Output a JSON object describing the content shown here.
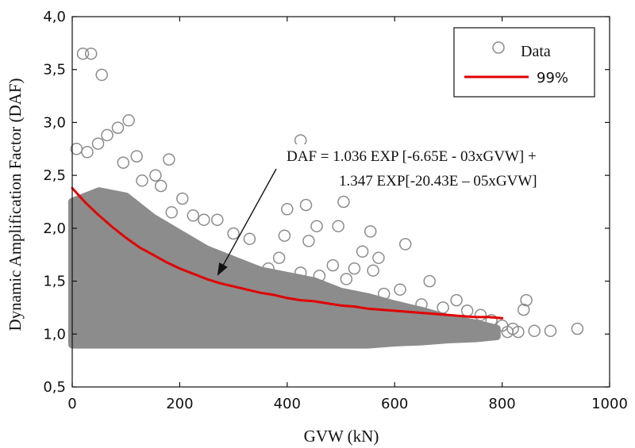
{
  "chart_data": {
    "type": "scatter",
    "xlabel": "GVW (kN)",
    "ylabel": "Dynamic Amplification Factor (DAF)",
    "xlim": [
      0,
      1000
    ],
    "ylim": [
      0.5,
      4.0
    ],
    "x_ticks": [
      "0",
      "200",
      "400",
      "600",
      "800",
      "1000"
    ],
    "y_ticks": [
      "0,5",
      "1,0",
      "1,5",
      "2,0",
      "2,5",
      "3,0",
      "3,5",
      "4,0"
    ],
    "x_tick_values": [
      0,
      200,
      400,
      600,
      800,
      1000
    ],
    "y_tick_values": [
      0.5,
      1.0,
      1.5,
      2.0,
      2.5,
      3.0,
      3.5,
      4.0
    ],
    "grid": false,
    "legend": {
      "placement": "top-right",
      "entries": [
        {
          "label": "Data",
          "marker": "open-circle",
          "color": "#8c8c8c"
        },
        {
          "label": "99%",
          "marker": "line",
          "color": "#e00000"
        }
      ]
    },
    "annotation": {
      "line1": "DAF = 1.036 EXP [-6.65E - 03xGVW] +",
      "line2": "1.347 EXP[-20.43E – 05xGVW]",
      "arrow_target": {
        "x": 270,
        "y": 1.55
      }
    },
    "series": [
      {
        "name": "Data",
        "type": "scatter",
        "color": "#8c8c8c",
        "dense_band": [
          {
            "x": 0,
            "y_low": 0.9,
            "y_high": 2.25
          },
          {
            "x": 50,
            "y_low": 0.9,
            "y_high": 2.35
          },
          {
            "x": 100,
            "y_low": 0.9,
            "y_high": 2.3
          },
          {
            "x": 150,
            "y_low": 0.9,
            "y_high": 2.1
          },
          {
            "x": 200,
            "y_low": 0.9,
            "y_high": 1.95
          },
          {
            "x": 250,
            "y_low": 0.9,
            "y_high": 1.8
          },
          {
            "x": 300,
            "y_low": 0.9,
            "y_high": 1.7
          },
          {
            "x": 350,
            "y_low": 0.9,
            "y_high": 1.6
          },
          {
            "x": 400,
            "y_low": 0.9,
            "y_high": 1.55
          },
          {
            "x": 450,
            "y_low": 0.9,
            "y_high": 1.5
          },
          {
            "x": 500,
            "y_low": 0.9,
            "y_high": 1.4
          },
          {
            "x": 550,
            "y_low": 0.9,
            "y_high": 1.35
          },
          {
            "x": 600,
            "y_low": 0.92,
            "y_high": 1.28
          },
          {
            "x": 650,
            "y_low": 0.93,
            "y_high": 1.22
          },
          {
            "x": 700,
            "y_low": 0.95,
            "y_high": 1.15
          },
          {
            "x": 750,
            "y_low": 0.96,
            "y_high": 1.1
          },
          {
            "x": 790,
            "y_low": 0.98,
            "y_high": 1.05
          }
        ],
        "outliers": [
          {
            "x": 20,
            "y": 3.65
          },
          {
            "x": 35,
            "y": 3.65
          },
          {
            "x": 55,
            "y": 3.45
          },
          {
            "x": 105,
            "y": 3.02
          },
          {
            "x": 85,
            "y": 2.95
          },
          {
            "x": 65,
            "y": 2.88
          },
          {
            "x": 8,
            "y": 2.75
          },
          {
            "x": 48,
            "y": 2.8
          },
          {
            "x": 28,
            "y": 2.72
          },
          {
            "x": 120,
            "y": 2.68
          },
          {
            "x": 180,
            "y": 2.65
          },
          {
            "x": 95,
            "y": 2.62
          },
          {
            "x": 155,
            "y": 2.5
          },
          {
            "x": 130,
            "y": 2.45
          },
          {
            "x": 165,
            "y": 2.4
          },
          {
            "x": 205,
            "y": 2.28
          },
          {
            "x": 185,
            "y": 2.15
          },
          {
            "x": 225,
            "y": 2.12
          },
          {
            "x": 245,
            "y": 2.08
          },
          {
            "x": 270,
            "y": 2.08
          },
          {
            "x": 300,
            "y": 1.95
          },
          {
            "x": 330,
            "y": 1.9
          },
          {
            "x": 425,
            "y": 2.83
          },
          {
            "x": 435,
            "y": 2.22
          },
          {
            "x": 400,
            "y": 2.18
          },
          {
            "x": 505,
            "y": 2.25
          },
          {
            "x": 455,
            "y": 2.02
          },
          {
            "x": 495,
            "y": 2.02
          },
          {
            "x": 555,
            "y": 1.97
          },
          {
            "x": 395,
            "y": 1.93
          },
          {
            "x": 440,
            "y": 1.88
          },
          {
            "x": 620,
            "y": 1.85
          },
          {
            "x": 540,
            "y": 1.78
          },
          {
            "x": 570,
            "y": 1.72
          },
          {
            "x": 385,
            "y": 1.72
          },
          {
            "x": 365,
            "y": 1.62
          },
          {
            "x": 485,
            "y": 1.65
          },
          {
            "x": 525,
            "y": 1.62
          },
          {
            "x": 560,
            "y": 1.6
          },
          {
            "x": 425,
            "y": 1.58
          },
          {
            "x": 460,
            "y": 1.55
          },
          {
            "x": 510,
            "y": 1.52
          },
          {
            "x": 665,
            "y": 1.5
          },
          {
            "x": 610,
            "y": 1.42
          },
          {
            "x": 580,
            "y": 1.38
          },
          {
            "x": 715,
            "y": 1.32
          },
          {
            "x": 845,
            "y": 1.32
          },
          {
            "x": 840,
            "y": 1.23
          },
          {
            "x": 650,
            "y": 1.28
          },
          {
            "x": 690,
            "y": 1.25
          },
          {
            "x": 735,
            "y": 1.22
          },
          {
            "x": 760,
            "y": 1.18
          },
          {
            "x": 780,
            "y": 1.13
          },
          {
            "x": 800,
            "y": 1.08
          },
          {
            "x": 820,
            "y": 1.05
          },
          {
            "x": 860,
            "y": 1.03
          },
          {
            "x": 890,
            "y": 1.03
          },
          {
            "x": 940,
            "y": 1.05
          },
          {
            "x": 830,
            "y": 1.02
          },
          {
            "x": 810,
            "y": 1.02
          }
        ]
      },
      {
        "name": "99%",
        "type": "line",
        "color": "#e00000",
        "x": [
          0,
          25,
          50,
          75,
          100,
          125,
          150,
          175,
          200,
          225,
          250,
          275,
          300,
          325,
          350,
          375,
          400,
          425,
          450,
          475,
          500,
          525,
          550,
          575,
          600,
          625,
          650,
          675,
          700,
          725,
          750,
          775,
          800
        ],
        "y": [
          2.38,
          2.24,
          2.12,
          2.01,
          1.91,
          1.82,
          1.75,
          1.68,
          1.62,
          1.57,
          1.52,
          1.48,
          1.45,
          1.42,
          1.39,
          1.37,
          1.34,
          1.32,
          1.31,
          1.29,
          1.27,
          1.26,
          1.24,
          1.23,
          1.22,
          1.21,
          1.2,
          1.19,
          1.18,
          1.17,
          1.16,
          1.16,
          1.15
        ]
      }
    ]
  }
}
